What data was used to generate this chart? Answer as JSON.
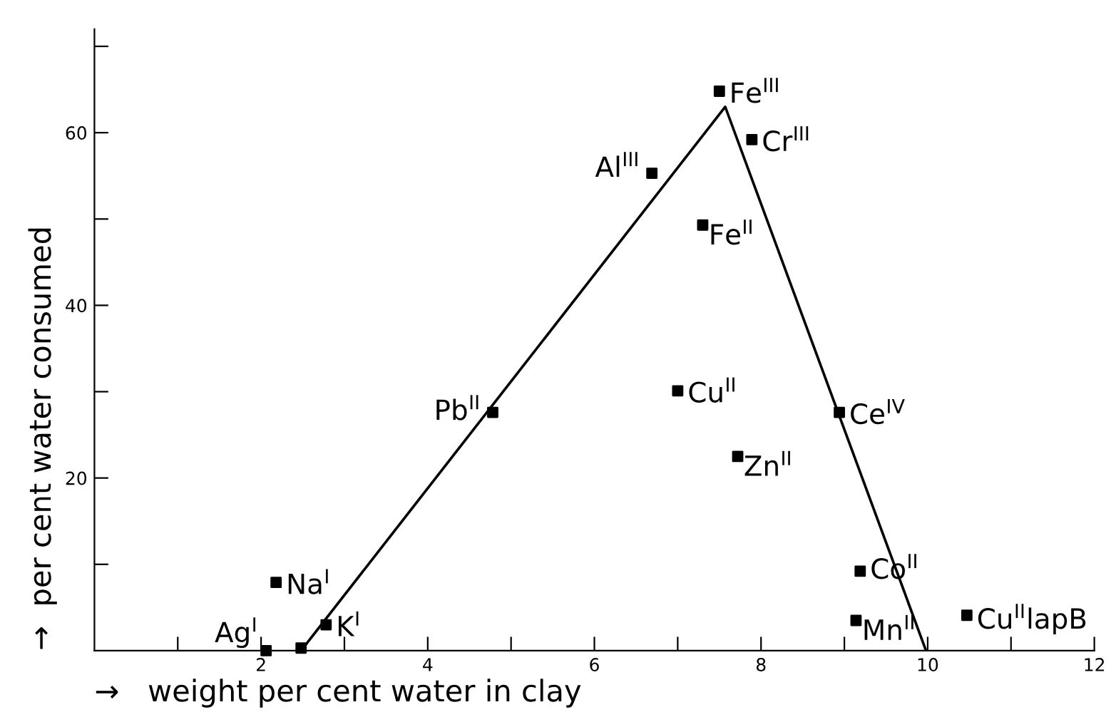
{
  "chart_data": {
    "type": "scatter",
    "xlabel": "→   weight per cent water in clay",
    "ylabel": "→  per cent water consumed",
    "xlim": [
      0,
      12
    ],
    "ylim": [
      0,
      72
    ],
    "xticks": [
      {
        "value": 1,
        "label": null
      },
      2,
      {
        "value": 3,
        "label": null
      },
      4,
      {
        "value": 5,
        "label": null
      },
      6,
      {
        "value": 7,
        "label": null
      },
      8,
      {
        "value": 9,
        "label": null
      },
      10,
      {
        "value": 11,
        "label": null
      },
      12
    ],
    "yticks": [
      {
        "value": 10,
        "label": null
      },
      20,
      {
        "value": 30,
        "label": null
      },
      40,
      {
        "value": 50,
        "label": null
      },
      60,
      {
        "value": 70,
        "label": null
      }
    ],
    "grid": false,
    "legend": false,
    "marker": "square",
    "series": [
      {
        "color": "#000000",
        "x": [
          2.06,
          2.48,
          2.18,
          2.78,
          4.78,
          6.69,
          7.5,
          7.89,
          7.3,
          7.0,
          8.94,
          7.72,
          9.19,
          9.14,
          10.47
        ],
        "values": [
          0,
          0.3,
          7.9,
          3.0,
          27.6,
          55.3,
          64.8,
          59.2,
          49.3,
          30.1,
          27.6,
          22.5,
          9.2,
          3.5,
          4.1
        ]
      },
      {
        "type": "line",
        "color": "#000000",
        "marker": "none",
        "line_style": "solid",
        "x": [
          2.48,
          7.57,
          9.98
        ],
        "values": [
          0,
          63,
          0
        ]
      }
    ],
    "annotations": [
      {
        "text": "Ag$^{I}$",
        "x": 2.06,
        "y": 0
      },
      {
        "text": "Na$^{I}$",
        "x": 2.18,
        "y": 7.9
      },
      {
        "text": "K$^{I}$",
        "x": 2.78,
        "y": 3.0
      },
      {
        "text": "Pb$^{II}$",
        "x": 4.78,
        "y": 27.6
      },
      {
        "text": "Al$^{III}$",
        "x": 6.69,
        "y": 55.3
      },
      {
        "text": "Fe$^{III}$",
        "x": 7.5,
        "y": 64.8
      },
      {
        "text": "Cr$^{III}$",
        "x": 7.89,
        "y": 59.2
      },
      {
        "text": "Fe$^{II}$",
        "x": 7.3,
        "y": 49.3
      },
      {
        "text": "Cu$^{II}$",
        "x": 7.0,
        "y": 30.1
      },
      {
        "text": "Ce$^{IV}$",
        "x": 8.94,
        "y": 27.6
      },
      {
        "text": "Zn$^{II}$",
        "x": 7.72,
        "y": 22.5
      },
      {
        "text": "Co$^{II}$",
        "x": 9.19,
        "y": 9.2
      },
      {
        "text": "Mn$^{II}$",
        "x": 9.14,
        "y": 3.5
      },
      {
        "text": "Cu$^{II}$lapB",
        "x": 10.47,
        "y": 4.1
      }
    ]
  }
}
